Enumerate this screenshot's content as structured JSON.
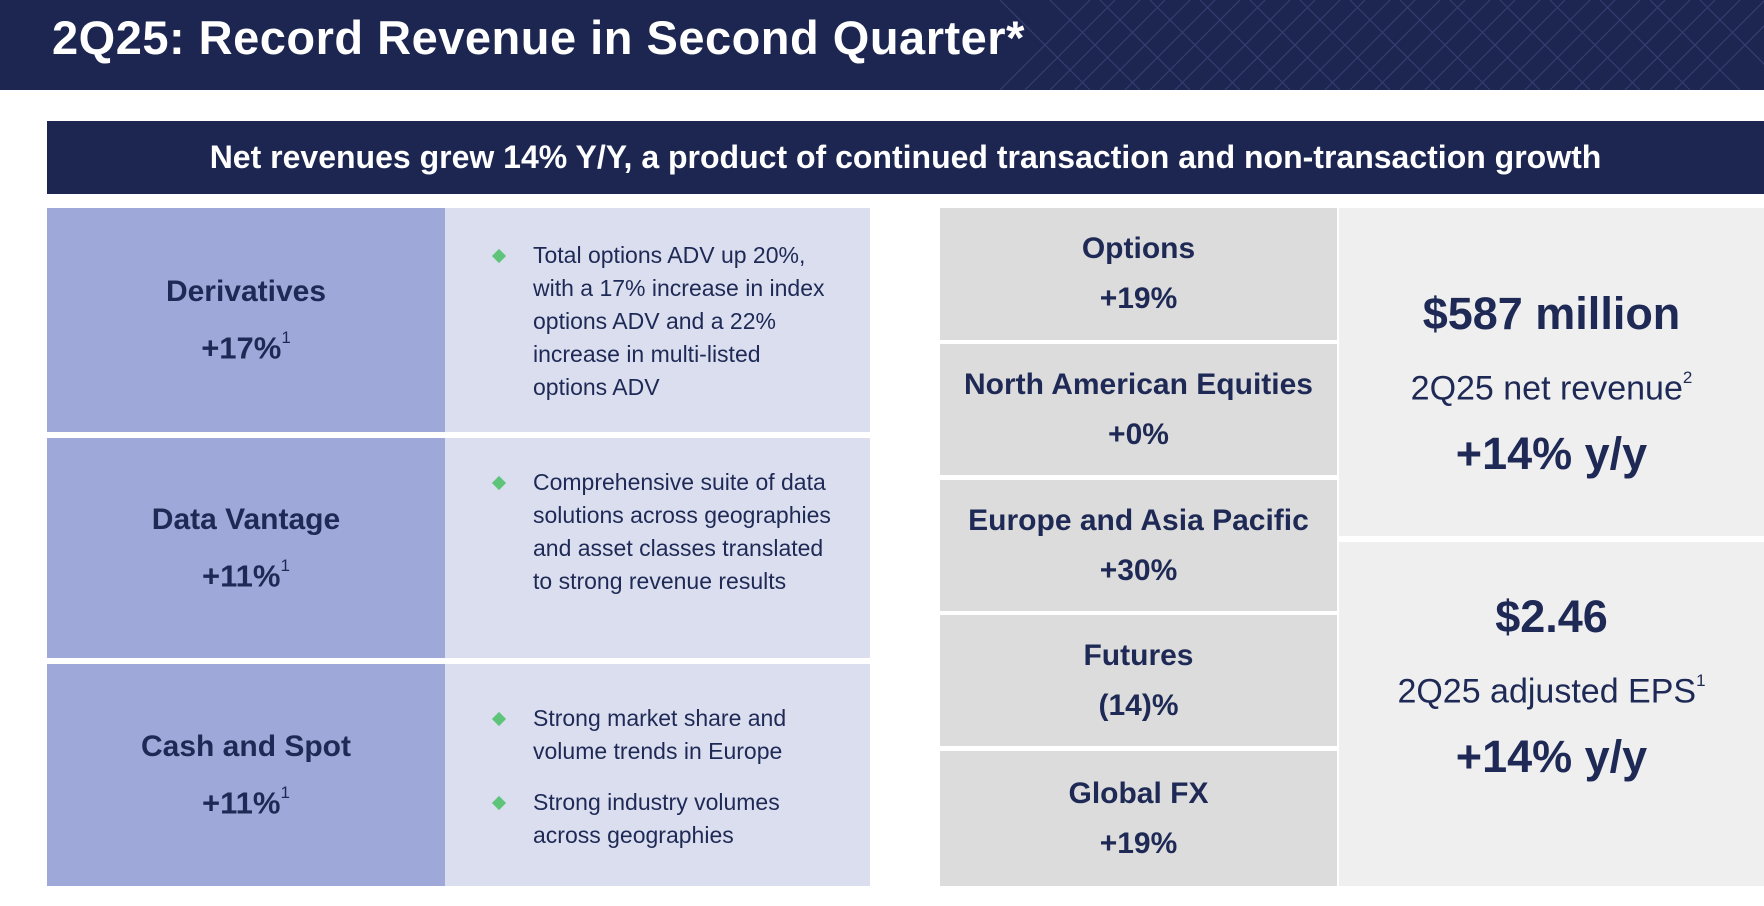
{
  "title": "2Q25: Record Revenue in Second Quarter*",
  "banner": "Net revenues grew 14% Y/Y, a product of continued transaction and non-transaction growth",
  "segments": [
    {
      "name": "Derivatives",
      "change": "+17%",
      "footnote": "1",
      "bullets": [
        "Total options ADV up 20%, with a 17% increase in index options ADV and a 22% increase in multi-listed options ADV"
      ]
    },
    {
      "name": "Data Vantage",
      "change": "+11%",
      "footnote": "1",
      "bullets": [
        "Comprehensive suite of data solutions across geographies and asset classes translated to strong revenue results"
      ]
    },
    {
      "name": "Cash and Spot",
      "change": "+11%",
      "footnote": "1",
      "bullets": [
        "Strong market share and volume trends in Europe",
        "Strong industry volumes across geographies"
      ]
    }
  ],
  "regions": [
    {
      "name": "Options",
      "change": "+19%"
    },
    {
      "name": "North American Equities",
      "change": "+0%"
    },
    {
      "name": "Europe and Asia Pacific",
      "change": "+30%"
    },
    {
      "name": "Futures",
      "change": "(14)%"
    },
    {
      "name": "Global FX",
      "change": "+19%"
    }
  ],
  "metrics": [
    {
      "value": "$587 million",
      "label": "2Q25 net revenue",
      "footnote": "2",
      "change": "+14% y/y"
    },
    {
      "value": "$2.46",
      "label": "2Q25 adjusted EPS",
      "footnote": "1",
      "change": "+14% y/y"
    }
  ],
  "colors": {
    "navy": "#1c2651",
    "text": "#1e2a55",
    "segment_dark": "#9ea9d9",
    "segment_light": "#dadeef",
    "region_gray": "#dcdcdc",
    "metric_bg": "#efeff0",
    "bullet_green": "#5ec47a"
  }
}
